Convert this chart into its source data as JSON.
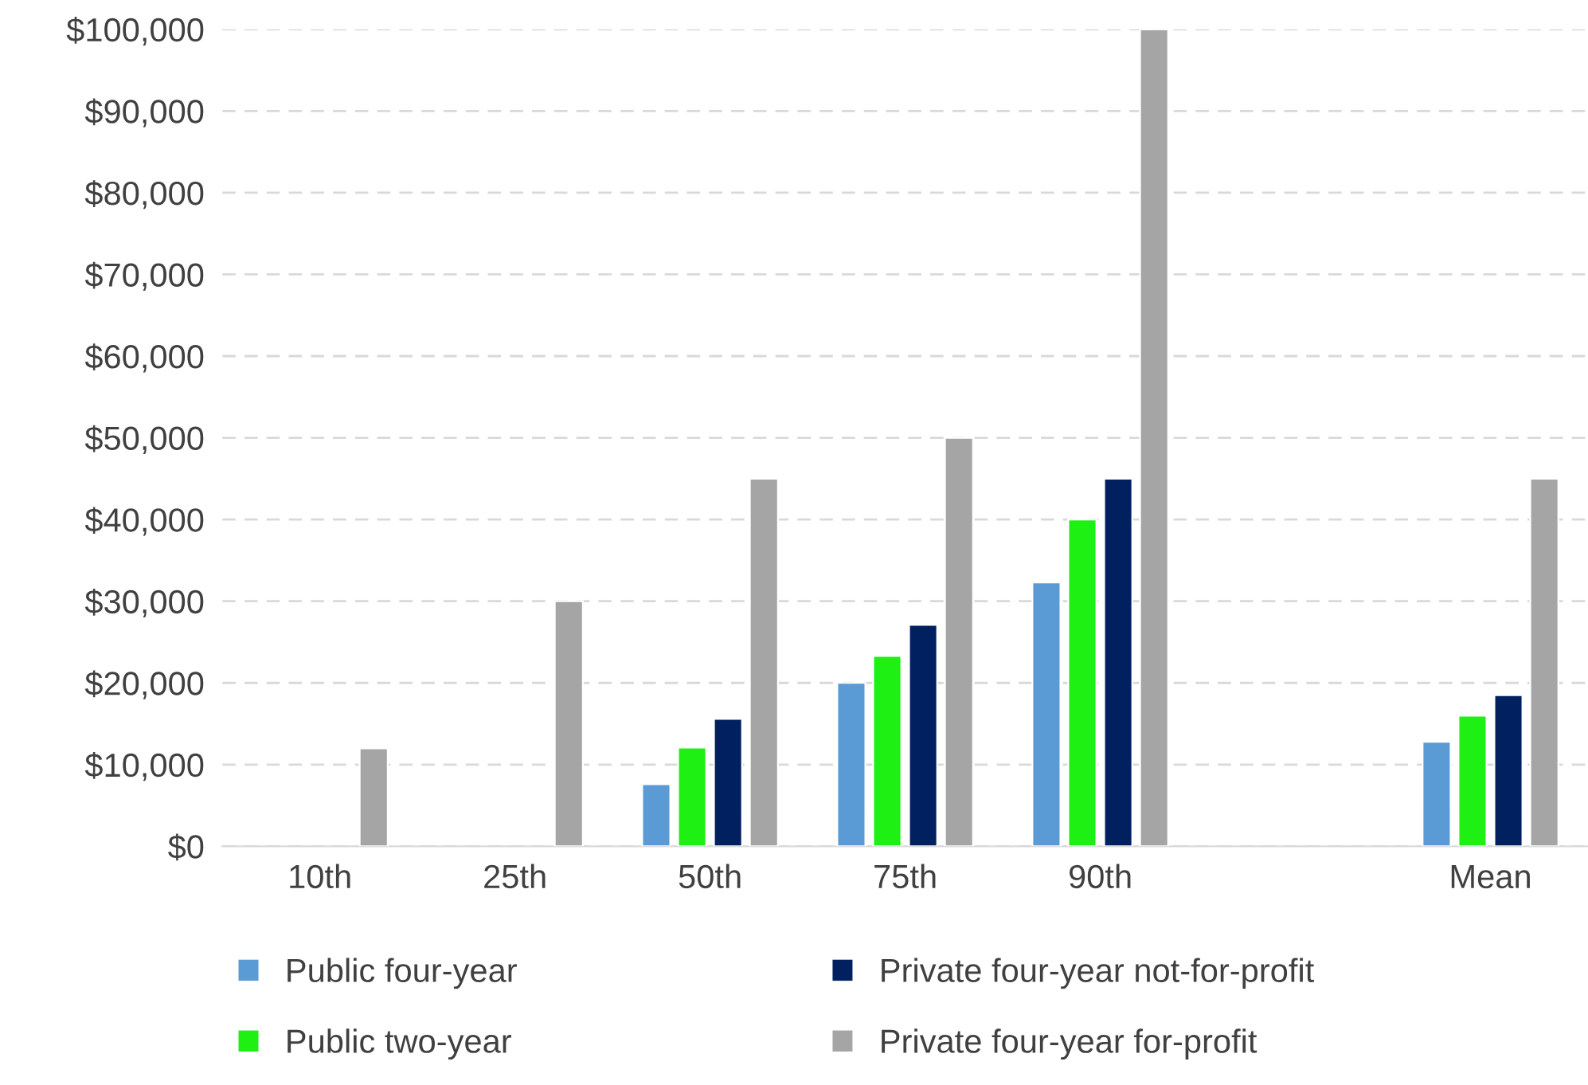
{
  "chart_data": {
    "type": "bar",
    "categories": [
      "10th",
      "25th",
      "50th",
      "75th",
      "90th",
      null,
      "Mean"
    ],
    "series": [
      {
        "name": "Public four-year",
        "color": "#5b9bd5",
        "values": [
          null,
          null,
          7600,
          20000,
          32300,
          null,
          12800
        ]
      },
      {
        "name": "Public two-year",
        "color": "#1ef014",
        "values": [
          null,
          null,
          12100,
          23300,
          40000,
          null,
          16000
        ]
      },
      {
        "name": "Private four-year not-for-profit",
        "color": "#002060",
        "values": [
          null,
          null,
          15600,
          27100,
          45000,
          null,
          18500
        ]
      },
      {
        "name": "Private four-year for-profit",
        "color": "#a5a5a5",
        "values": [
          12000,
          30000,
          45000,
          50000,
          100000,
          null,
          45000
        ]
      }
    ],
    "ylim": [
      0,
      100000
    ],
    "yticks": [
      {
        "value": 0,
        "label": "$0"
      },
      {
        "value": 10000,
        "label": "$10,000"
      },
      {
        "value": 20000,
        "label": "$20,000"
      },
      {
        "value": 30000,
        "label": "$30,000"
      },
      {
        "value": 40000,
        "label": "$40,000"
      },
      {
        "value": 50000,
        "label": "$50,000"
      },
      {
        "value": 60000,
        "label": "$60,000"
      },
      {
        "value": 70000,
        "label": "$70,000"
      },
      {
        "value": 80000,
        "label": "$80,000"
      },
      {
        "value": 90000,
        "label": "$90,000"
      },
      {
        "value": 100000,
        "label": "$100,000"
      }
    ],
    "grid": "y",
    "legend": "bottom"
  }
}
